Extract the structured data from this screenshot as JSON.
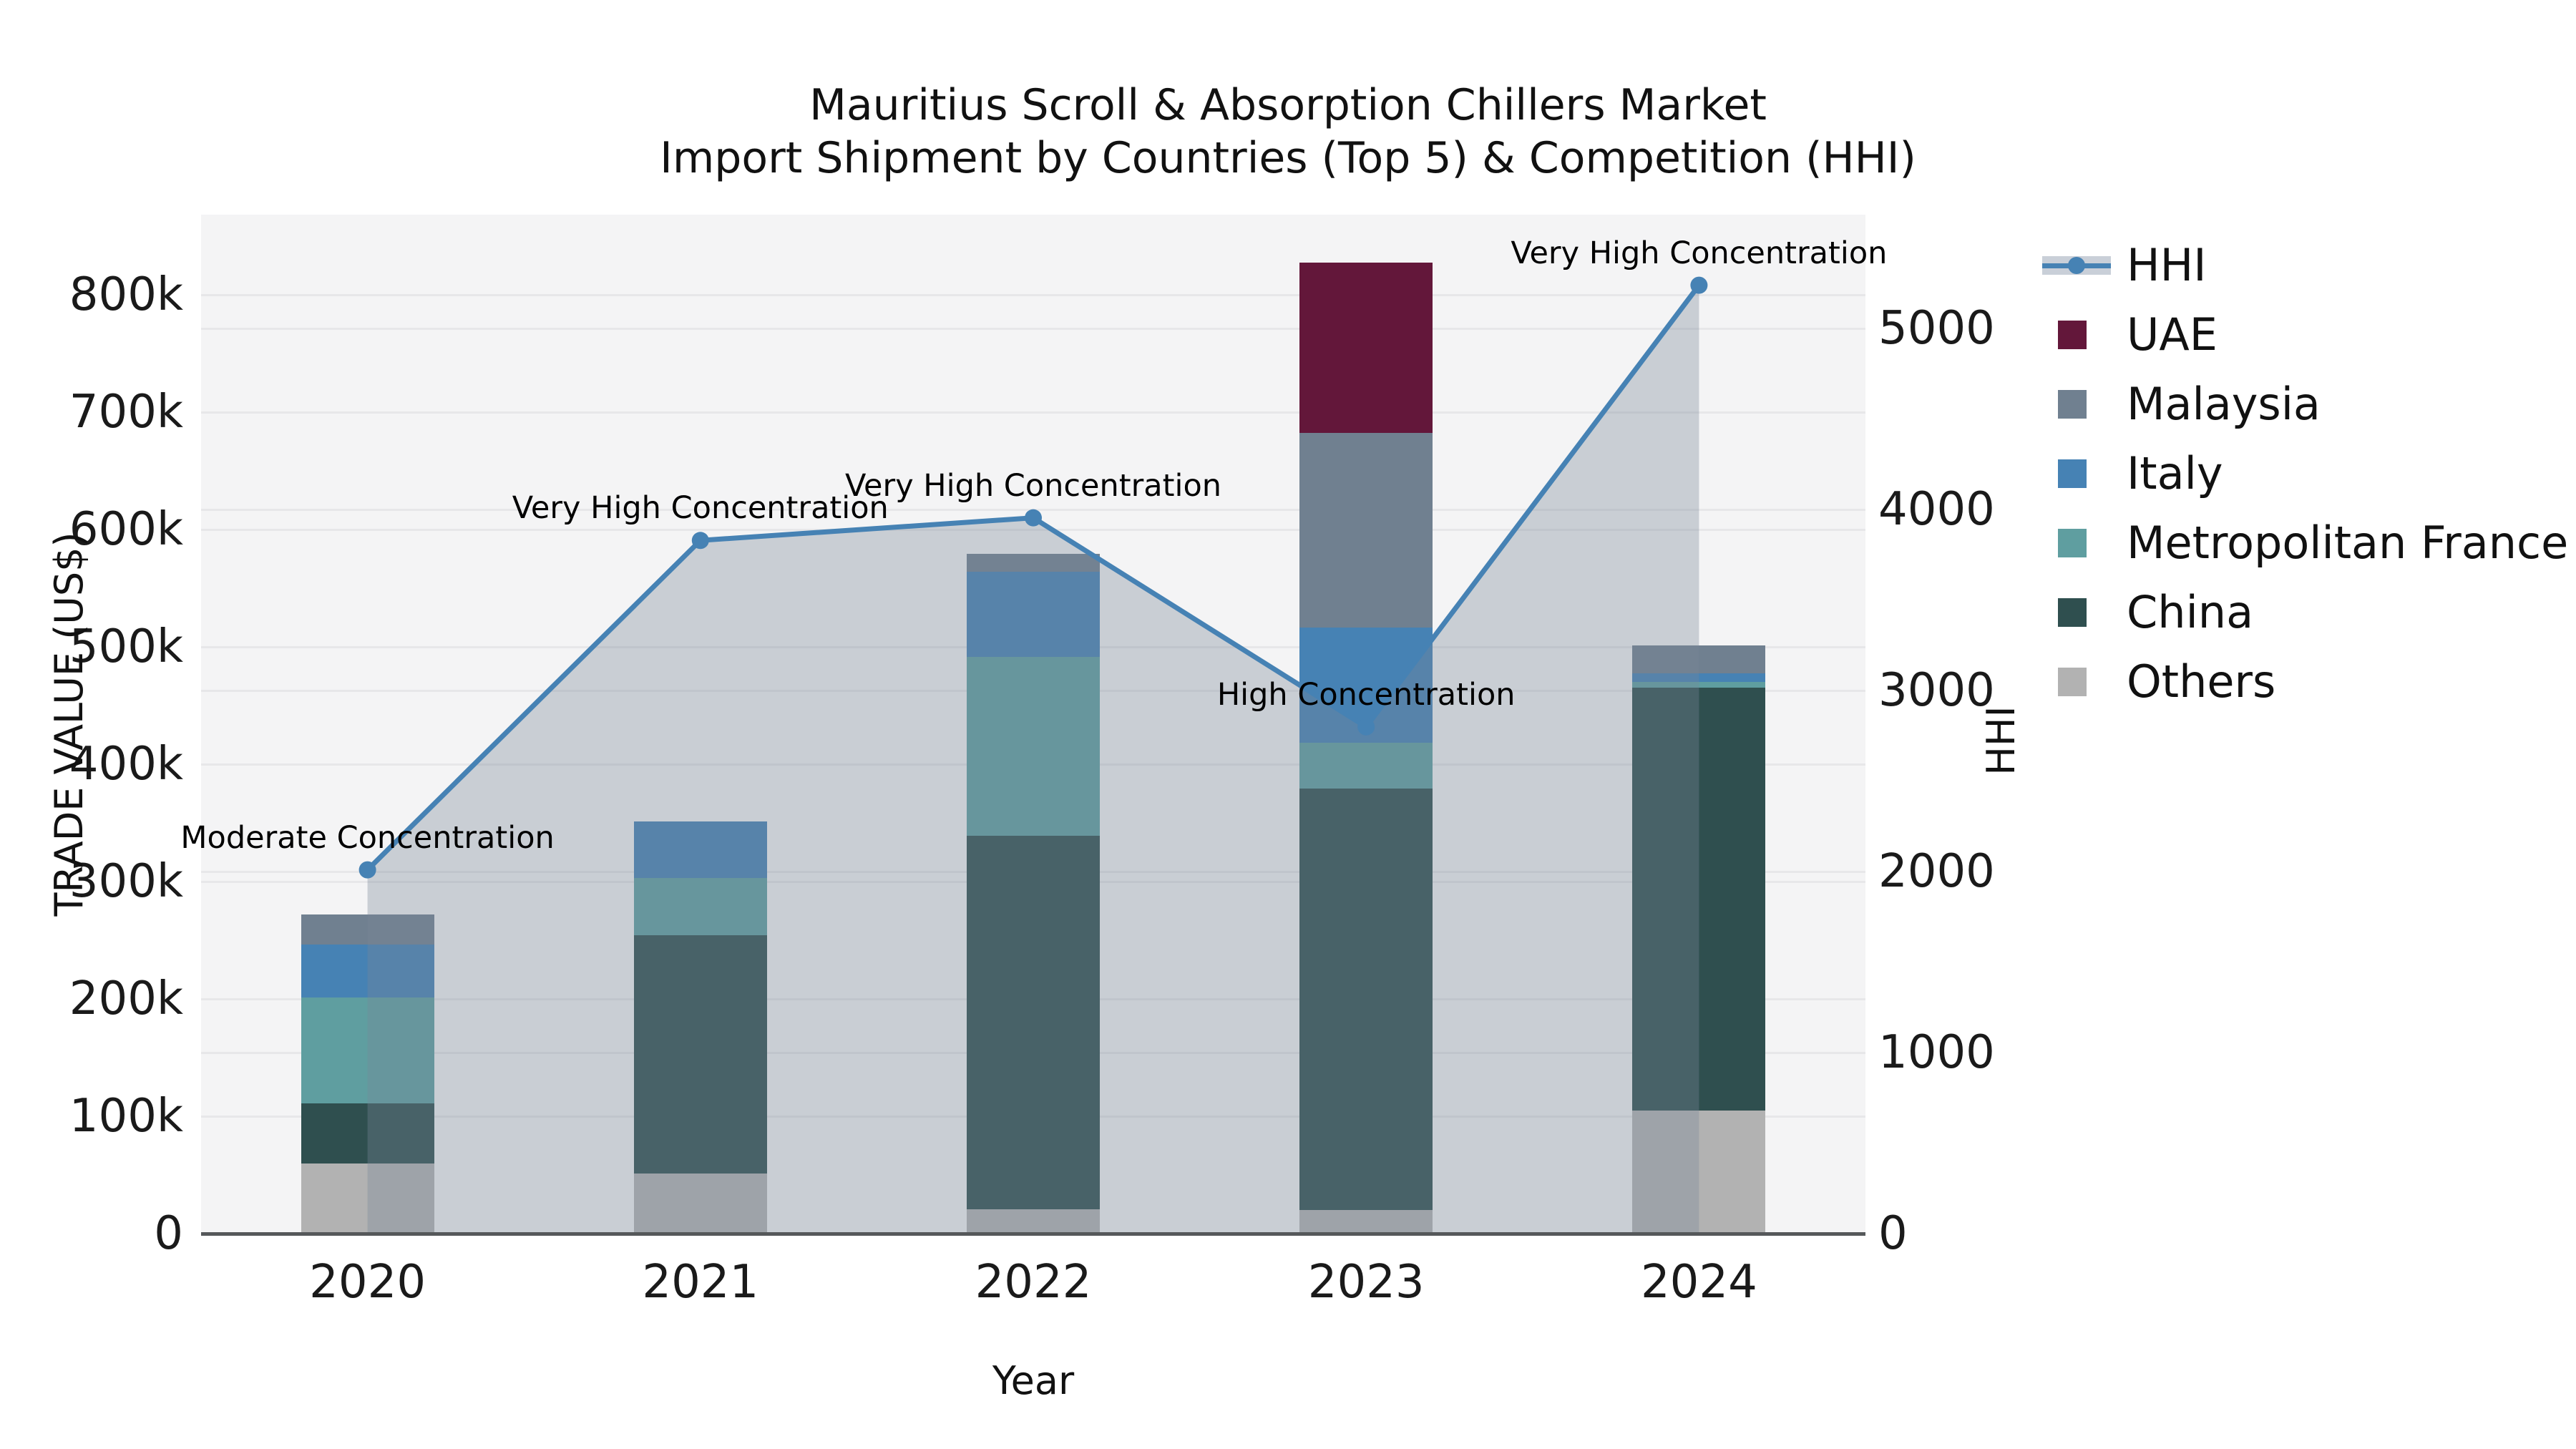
{
  "title": {
    "line1": "Mauritius Scroll & Absorption Chillers Market",
    "line2": "Import Shipment by Countries (Top 5) & Competition (HHI)"
  },
  "axes": {
    "x": {
      "label": "Year",
      "tick_labels": [
        "2020",
        "2021",
        "2022",
        "2023",
        "2024"
      ]
    },
    "y_left": {
      "label": "TRADE VALUE (US$)",
      "tick_labels": [
        "0",
        "100k",
        "200k",
        "300k",
        "400k",
        "500k",
        "600k",
        "700k",
        "800k"
      ],
      "tick_values_k": [
        0,
        100,
        200,
        300,
        400,
        500,
        600,
        700,
        800
      ]
    },
    "y_right": {
      "label": "HHI",
      "tick_labels": [
        "0",
        "1000",
        "2000",
        "3000",
        "4000",
        "5000"
      ],
      "tick_values": [
        0,
        1000,
        2000,
        3000,
        4000,
        5000
      ]
    }
  },
  "legend": [
    {
      "label": "HHI",
      "marker": "line"
    },
    {
      "label": "UAE",
      "marker": "square"
    },
    {
      "label": "Malaysia",
      "marker": "square"
    },
    {
      "label": "Italy",
      "marker": "square"
    },
    {
      "label": "Metropolitan France",
      "marker": "square"
    },
    {
      "label": "China",
      "marker": "square"
    },
    {
      "label": "Others",
      "marker": "square"
    }
  ],
  "colors": {
    "UAE": "#63173a",
    "Malaysia": "#708090",
    "Italy": "#4682b4",
    "Metropolitan France": "#5f9ea0",
    "China": "#2f4f4f",
    "Others": "#b2b2b2",
    "hhi_line": "#4682b4",
    "hhi_area_fill": "#778899",
    "hhi_area_opacity": 0.35,
    "plot_bg": "#f4f4f5",
    "grid": "#e7e7e9",
    "axis_line": "#55585a"
  },
  "chart_data": {
    "type": [
      "stacked-bar",
      "line"
    ],
    "title": "Mauritius Scroll & Absorption Chillers Market — Import Shipment by Countries (Top 5) & Competition (HHI)",
    "categories": [
      "2020",
      "2021",
      "2022",
      "2023",
      "2024"
    ],
    "bar_value_unit": "US$ thousands (trade value)",
    "series": [
      {
        "name": "UAE",
        "values": [
          0,
          0,
          0,
          145,
          0
        ]
      },
      {
        "name": "Malaysia",
        "values": [
          26,
          0,
          15,
          166,
          24
        ]
      },
      {
        "name": "Italy",
        "values": [
          45,
          48,
          73,
          98,
          7
        ]
      },
      {
        "name": "Metropolitan France",
        "values": [
          90,
          49,
          152,
          39,
          5
        ]
      },
      {
        "name": "China",
        "values": [
          51,
          203,
          318,
          359,
          360
        ]
      },
      {
        "name": "Others",
        "values": [
          60,
          51,
          21,
          20,
          105
        ]
      }
    ],
    "bar_totals_k": [
      272,
      351,
      579,
      827,
      501
    ],
    "stack_order_bottom_to_top": [
      "Others",
      "China",
      "Metropolitan France",
      "Italy",
      "Malaysia",
      "UAE"
    ],
    "line_series": {
      "name": "HHI",
      "axis": "right",
      "values": [
        2010,
        3830,
        3955,
        2800,
        5240
      ]
    },
    "annotations": [
      {
        "year": "2020",
        "text": "Moderate Concentration"
      },
      {
        "year": "2021",
        "text": "Very High Concentration"
      },
      {
        "year": "2022",
        "text": "Very High Concentration"
      },
      {
        "year": "2023",
        "text": "High Concentration"
      },
      {
        "year": "2024",
        "text": "Very High Concentration"
      }
    ],
    "xlabel": "Year",
    "ylabel_left": "TRADE VALUE (US$)",
    "ylabel_right": "HHI",
    "ylim_left_k": [
      0,
      868
    ],
    "ylim_right": [
      0,
      5630
    ],
    "grid": true,
    "legend_position": "right"
  }
}
